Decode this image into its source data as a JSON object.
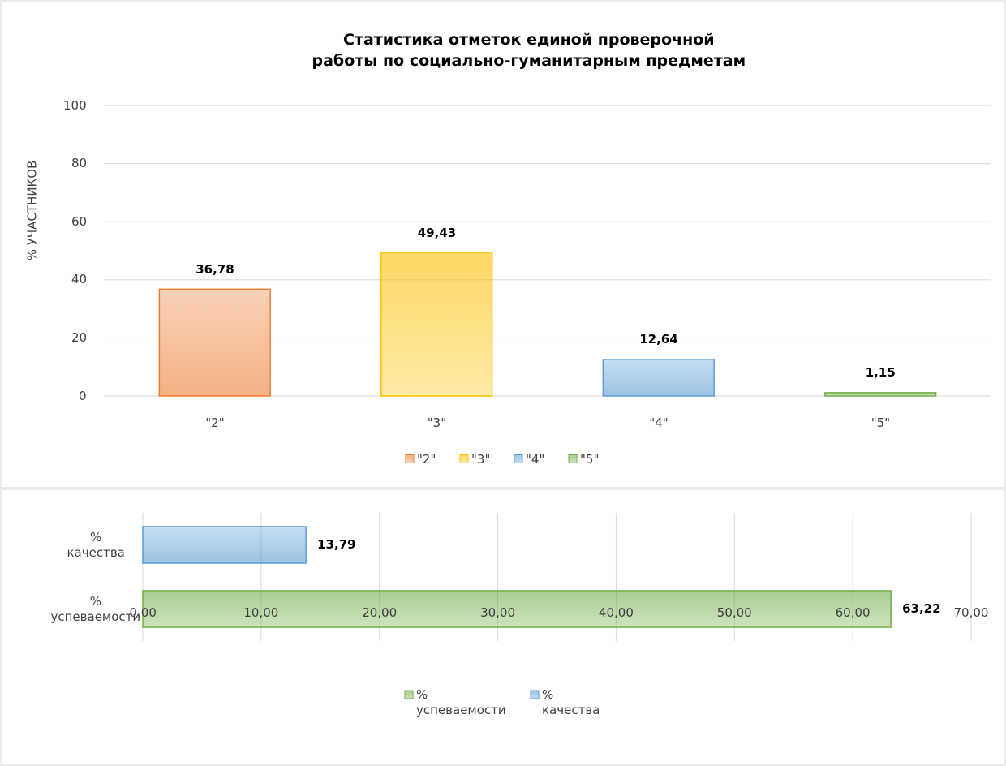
{
  "chart_data": [
    {
      "type": "bar",
      "title": "Статистика отметок единой проверочной\nработы по социально-гуманитарным предметам",
      "ylabel": "% УЧАСТНИКОВ",
      "categories": [
        "\"2\"",
        "\"3\"",
        "\"4\"",
        "\"5\""
      ],
      "values": [
        36.78,
        49.43,
        12.64,
        1.15
      ],
      "value_labels": [
        "36,78",
        "49,43",
        "12,64",
        "1,15"
      ],
      "colors": [
        "#ed7d31",
        "#ffc000",
        "#5b9bd5",
        "#70ad47"
      ],
      "ylim": [
        0,
        100
      ],
      "yticks": [
        0,
        20,
        40,
        60,
        80,
        100
      ],
      "grid": true,
      "legend": "bottom"
    },
    {
      "type": "hbar",
      "categories": [
        "%\nкачества",
        "%\nуспеваемости"
      ],
      "values": [
        13.79,
        63.22
      ],
      "value_labels": [
        "13,79",
        "63,22"
      ],
      "colors": [
        "#5b9bd5",
        "#70ad47"
      ],
      "xlim": [
        0,
        70
      ],
      "xticks": [
        {
          "value": 0,
          "label": "0,00"
        },
        {
          "value": 10,
          "label": "10,00"
        },
        {
          "value": 20,
          "label": "20,00"
        },
        {
          "value": 30,
          "label": "30,00"
        },
        {
          "value": 40,
          "label": "40,00"
        },
        {
          "value": 50,
          "label": "50,00"
        },
        {
          "value": 60,
          "label": "60,00"
        },
        {
          "value": 70,
          "label": "70,00"
        }
      ],
      "grid": true,
      "legend": "bottom"
    }
  ]
}
